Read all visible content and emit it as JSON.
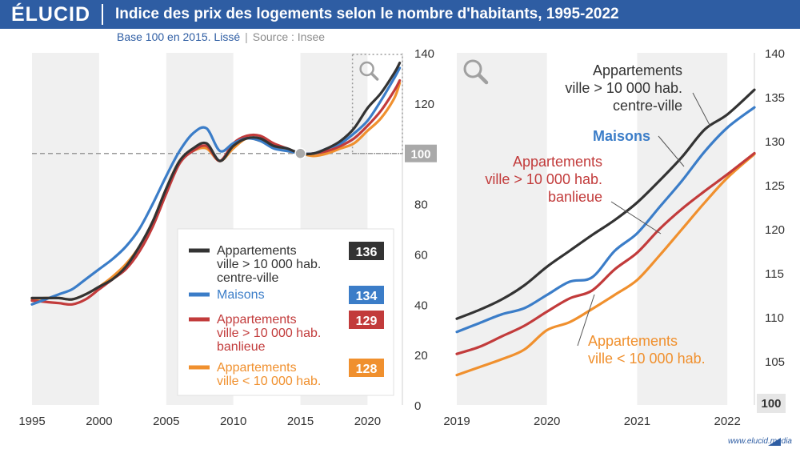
{
  "header": {
    "logo": "ÉLUCID",
    "title": "Indice des prix des logements selon le nombre d'habitants, 1995-2022",
    "subtitle_base": "Base 100 en 2015. Lissé",
    "subtitle_separator": "|",
    "subtitle_source": "Source : Insee"
  },
  "footer": {
    "site": "www.elucid.media"
  },
  "colors": {
    "header_bg": "#2e5da3",
    "centre": "#333333",
    "maisons": "#3b7dc8",
    "banlieue": "#c23b3b",
    "petites": "#f0902e",
    "ref_badge": "#a9a9a9",
    "panel_band": "#f0f0f0"
  },
  "chart_data": [
    {
      "type": "line",
      "name": "full-period",
      "x_ticks": [
        "1995",
        "2000",
        "2005",
        "2010",
        "2015",
        "2020"
      ],
      "xlim": [
        1995,
        2022.6
      ],
      "ylim": [
        0,
        140
      ],
      "y_ticks": [
        "0",
        "20",
        "40",
        "60",
        "80",
        "100",
        "120",
        "140"
      ],
      "reference_value": 100,
      "reference_label": "100",
      "grid": false,
      "alternating_bands": true,
      "zoom_box_x": [
        2019,
        2022.6
      ],
      "series": [
        {
          "key": "centre",
          "name": "Appartements ville > 10 000 hab. centre-ville",
          "legend_lines": [
            "Appartements",
            "ville > 10 000 hab.",
            "centre-ville"
          ],
          "last_value": "136",
          "color": "#333333",
          "x": [
            1995,
            1996,
            1997,
            1998,
            1999,
            2000,
            2001,
            2002,
            2003,
            2004,
            2005,
            2006,
            2007,
            2008,
            2009,
            2010,
            2011,
            2012,
            2013,
            2014,
            2015,
            2016,
            2017,
            2018,
            2019,
            2020,
            2021,
            2022,
            2022.4
          ],
          "y": [
            42.5,
            42.5,
            42.5,
            42,
            44,
            47,
            50,
            55,
            63,
            73,
            86,
            97,
            102,
            104,
            97,
            103,
            106,
            106,
            103,
            102,
            100,
            100,
            102,
            105,
            110,
            118,
            124,
            132,
            136
          ]
        },
        {
          "key": "maisons",
          "name": "Maisons",
          "legend_lines": [
            "Maisons"
          ],
          "last_value": "134",
          "color": "#3b7dc8",
          "x": [
            1995,
            1996,
            1997,
            1998,
            1999,
            2000,
            2001,
            2002,
            2003,
            2004,
            2005,
            2006,
            2007,
            2008,
            2009,
            2010,
            2011,
            2012,
            2013,
            2014,
            2015,
            2016,
            2017,
            2018,
            2019,
            2020,
            2021,
            2022,
            2022.4
          ],
          "y": [
            40,
            42,
            44,
            46,
            50,
            54,
            58,
            63,
            70,
            80,
            91,
            101,
            108,
            110,
            101,
            104,
            106,
            105,
            102,
            101,
            100,
            100,
            102,
            104,
            108,
            113,
            121,
            130,
            134
          ]
        },
        {
          "key": "banlieue",
          "name": "Appartements ville > 10 000 hab. banlieue",
          "legend_lines": [
            "Appartements",
            "ville > 10 000 hab.",
            "banlieue"
          ],
          "last_value": "129",
          "color": "#c23b3b",
          "x": [
            1995,
            1996,
            1997,
            1998,
            1999,
            2000,
            2001,
            2002,
            2003,
            2004,
            2005,
            2006,
            2007,
            2008,
            2009,
            2010,
            2011,
            2012,
            2013,
            2014,
            2015,
            2016,
            2017,
            2018,
            2019,
            2020,
            2021,
            2022,
            2022.4
          ],
          "y": [
            41.5,
            41,
            40.5,
            40,
            42,
            46,
            50,
            54,
            61,
            71,
            84,
            96,
            101,
            103,
            97,
            104,
            107,
            107,
            104,
            102,
            100,
            100,
            101,
            103,
            106,
            111,
            117,
            125,
            129
          ]
        },
        {
          "key": "petites",
          "name": "Appartements ville < 10 000 hab.",
          "legend_lines": [
            "Appartements",
            "ville < 10 000 hab."
          ],
          "last_value": "128",
          "color": "#f0902e",
          "x": [
            1995,
            1996,
            1997,
            1998,
            1999,
            2000,
            2001,
            2002,
            2003,
            2004,
            2005,
            2006,
            2007,
            2008,
            2009,
            2010,
            2011,
            2012,
            2013,
            2014,
            2015,
            2016,
            2017,
            2018,
            2019,
            2020,
            2021,
            2022,
            2022.4
          ],
          "y": [
            42,
            42.5,
            42.5,
            42,
            44,
            47,
            51,
            56,
            63,
            73,
            86,
            97,
            101,
            102,
            97,
            102,
            106,
            105,
            103,
            101,
            100,
            99,
            100,
            102,
            104,
            109,
            114,
            122,
            128
          ]
        }
      ]
    },
    {
      "type": "line",
      "name": "zoom-2019-2022",
      "x_ticks": [
        "2019",
        "2020",
        "2021",
        "2022"
      ],
      "xlim": [
        2019,
        2022.3
      ],
      "ylim": [
        100,
        140
      ],
      "y_ticks": [
        "100",
        "105",
        "110",
        "115",
        "120",
        "125",
        "130",
        "135",
        "140"
      ],
      "alternating_bands": true,
      "grid": false,
      "annotations": [
        {
          "key": "centre",
          "lines": [
            "Appartements",
            "ville > 10 000 hab.",
            "centre-ville"
          ],
          "color": "#333333"
        },
        {
          "key": "maisons",
          "lines": [
            "Maisons"
          ],
          "color": "#3b7dc8"
        },
        {
          "key": "banlieue",
          "lines": [
            "Appartements",
            "ville > 10 000 hab.",
            "banlieue"
          ],
          "color": "#c23b3b"
        },
        {
          "key": "petites",
          "lines": [
            "Appartements",
            "ville < 10 000 hab."
          ],
          "color": "#f0902e"
        }
      ],
      "series": [
        {
          "key": "centre",
          "color": "#333333",
          "x": [
            2019,
            2019.25,
            2019.5,
            2019.75,
            2020,
            2020.25,
            2020.5,
            2020.75,
            2021,
            2021.25,
            2021.5,
            2021.75,
            2022,
            2022.3
          ],
          "y": [
            109.8,
            110.8,
            112,
            113.6,
            115.7,
            117.5,
            119.3,
            121,
            123,
            125.5,
            128.2,
            131.3,
            133,
            135.8
          ]
        },
        {
          "key": "maisons",
          "color": "#3b7dc8",
          "x": [
            2019,
            2019.25,
            2019.5,
            2019.75,
            2020,
            2020.25,
            2020.5,
            2020.75,
            2021,
            2021.25,
            2021.5,
            2021.75,
            2022,
            2022.3
          ],
          "y": [
            108.3,
            109.3,
            110.3,
            111,
            112.5,
            114,
            114.5,
            117.5,
            119.5,
            122.5,
            125.5,
            128.8,
            131.5,
            133.8
          ]
        },
        {
          "key": "banlieue",
          "color": "#c23b3b",
          "x": [
            2019,
            2019.25,
            2019.5,
            2019.75,
            2020,
            2020.25,
            2020.5,
            2020.75,
            2021,
            2021.25,
            2021.5,
            2021.75,
            2022,
            2022.3
          ],
          "y": [
            105.8,
            106.6,
            107.8,
            109,
            110.6,
            112.1,
            113,
            115.4,
            117.3,
            120,
            122.3,
            124.3,
            126.2,
            128.6
          ]
        },
        {
          "key": "petites",
          "color": "#f0902e",
          "x": [
            2019,
            2019.25,
            2019.5,
            2019.75,
            2020,
            2020.25,
            2020.5,
            2020.75,
            2021,
            2021.25,
            2021.5,
            2021.75,
            2022,
            2022.3
          ],
          "y": [
            103.4,
            104.3,
            105.2,
            106.3,
            108.5,
            109.4,
            110.9,
            112.5,
            114.2,
            117,
            120,
            123,
            125.8,
            128.5
          ]
        }
      ]
    }
  ]
}
